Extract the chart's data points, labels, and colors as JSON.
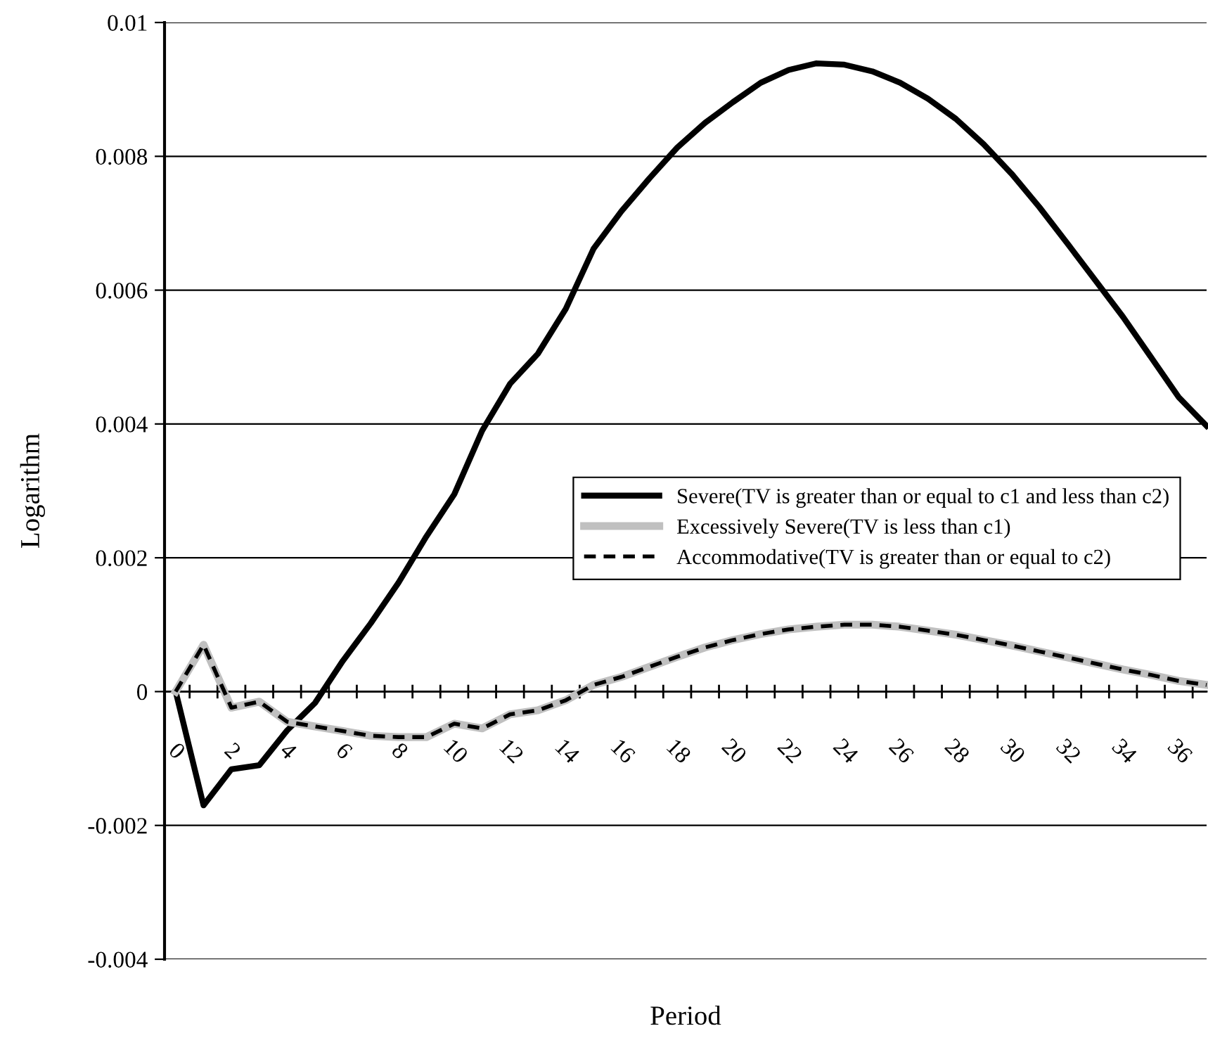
{
  "chart_data": {
    "type": "line",
    "xlabel": "Period",
    "ylabel": "Logarithm",
    "categories": [
      "0",
      null,
      "2",
      null,
      "4",
      null,
      "6",
      null,
      "8",
      null,
      "10",
      null,
      "12",
      null,
      "14",
      null,
      "16",
      null,
      "18",
      null,
      "20",
      null,
      "22",
      null,
      "24",
      null,
      "26",
      null,
      "28",
      null,
      "30",
      null,
      "32",
      null,
      "34",
      null,
      "36",
      null
    ],
    "series": [
      {
        "name": "Severe(TV is greater than or equal to c1 and less than c2)",
        "color": "#000000",
        "line_style": "solid",
        "values": [
          0,
          -0.0017,
          -0.00116,
          -0.0011,
          -0.00058,
          -0.00017,
          0.00046,
          0.00102,
          0.00163,
          0.00232,
          0.00295,
          0.0039,
          0.0046,
          0.00505,
          0.00572,
          0.00662,
          0.00718,
          0.00767,
          0.00813,
          0.0085,
          0.00881,
          0.0091,
          0.00929,
          0.00939,
          0.00937,
          0.00927,
          0.0091,
          0.00886,
          0.00856,
          0.00818,
          0.00774,
          0.00724,
          0.0067,
          0.00615,
          0.0056,
          0.005,
          0.0044,
          0.00397
        ]
      },
      {
        "name": "Excessively Severe(TV is less than c1)",
        "color": "#c0c0c0",
        "line_style": "solid",
        "values": [
          0,
          0.0007,
          -0.00024,
          -0.00015,
          -0.00045,
          -0.00052,
          -0.00059,
          -0.00066,
          -0.00068,
          -0.00068,
          -0.00048,
          -0.00055,
          -0.00034,
          -0.00028,
          -0.00013,
          0.0001,
          0.00022,
          0.00037,
          0.00052,
          0.00066,
          0.00077,
          0.00086,
          0.00093,
          0.00097,
          0.001,
          0.001,
          0.00097,
          0.00091,
          0.00085,
          0.00077,
          0.00069,
          0.0006,
          0.00051,
          0.00042,
          0.00033,
          0.00025,
          0.00016,
          0.0001
        ]
      },
      {
        "name": "Accommodative(TV is greater than or equal to c2)",
        "color": "#000000",
        "line_style": "dashed",
        "values": [
          0,
          0.0007,
          -0.00024,
          -0.00015,
          -0.00045,
          -0.00052,
          -0.00059,
          -0.00066,
          -0.00068,
          -0.00068,
          -0.00048,
          -0.00055,
          -0.00034,
          -0.00028,
          -0.00013,
          0.0001,
          0.00022,
          0.00037,
          0.00052,
          0.00066,
          0.00077,
          0.00086,
          0.00093,
          0.00097,
          0.001,
          0.001,
          0.00097,
          0.00091,
          0.00085,
          0.00077,
          0.00069,
          0.0006,
          0.00051,
          0.00042,
          0.00033,
          0.00025,
          0.00016,
          0.0001
        ]
      }
    ],
    "ylim": [
      -0.004,
      0.01
    ],
    "yticks": [
      -0.004,
      -0.002,
      0,
      0.002,
      0.004,
      0.006,
      0.008,
      0.01
    ],
    "grid": "y",
    "legend": "center right",
    "marker": "none"
  }
}
